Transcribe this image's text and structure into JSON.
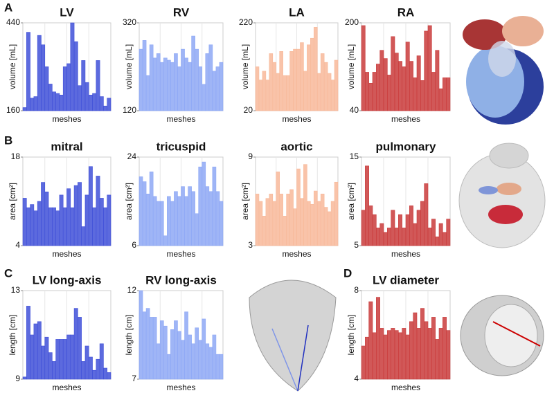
{
  "panel_labels": [
    "A",
    "B",
    "C",
    "D"
  ],
  "chart_data": [
    {
      "type": "bar",
      "title": "LV",
      "x_label": "meshes",
      "y_label": "volume [mL]",
      "color": "#4050d8",
      "ylim": [
        160,
        440
      ],
      "yticks": [
        160,
        440
      ],
      "values": [
        170,
        410,
        200,
        205,
        400,
        370,
        300,
        245,
        220,
        215,
        210,
        300,
        310,
        440,
        380,
        240,
        320,
        250,
        210,
        215,
        320,
        205,
        175,
        200
      ]
    },
    {
      "type": "bar",
      "title": "RV",
      "x_label": "meshes",
      "y_label": "volume [mL]",
      "color": "#8ea8f5",
      "ylim": [
        120,
        320
      ],
      "yticks": [
        120,
        320
      ],
      "values": [
        260,
        280,
        200,
        270,
        240,
        250,
        230,
        240,
        235,
        230,
        250,
        220,
        260,
        240,
        230,
        290,
        260,
        220,
        180,
        250,
        270,
        210,
        220,
        230
      ]
    },
    {
      "type": "bar",
      "title": "LA",
      "x_label": "meshes",
      "y_label": "volume [mL]",
      "color": "#f8b99a",
      "ylim": [
        20,
        220
      ],
      "yticks": [
        20,
        220
      ],
      "values": [
        120,
        90,
        110,
        90,
        150,
        130,
        105,
        155,
        100,
        100,
        155,
        160,
        160,
        175,
        110,
        170,
        185,
        210,
        105,
        150,
        130,
        105,
        90,
        135
      ]
    },
    {
      "type": "bar",
      "title": "RA",
      "x_label": "meshes",
      "y_label": "volume [mL]",
      "color": "#c93b3b",
      "ylim": [
        40,
        200
      ],
      "yticks": [
        40,
        200
      ],
      "values": [
        195,
        110,
        90,
        110,
        125,
        150,
        135,
        105,
        175,
        145,
        130,
        120,
        165,
        130,
        100,
        140,
        95,
        185,
        195,
        110,
        150,
        80,
        100,
        100
      ]
    },
    {
      "type": "bar",
      "title": "mitral",
      "x_label": "meshes",
      "y_label": "area [cm²]",
      "color": "#4050d8",
      "ylim": [
        4,
        18
      ],
      "yticks": [
        4,
        18
      ],
      "values": [
        11.5,
        10,
        10.5,
        9.5,
        11,
        14,
        12.5,
        10,
        10,
        9.5,
        12,
        10,
        13,
        10,
        13.5,
        14,
        7,
        12,
        16.5,
        10,
        15,
        11.5,
        10,
        12
      ]
    },
    {
      "type": "bar",
      "title": "tricuspid",
      "x_label": "meshes",
      "y_label": "area [cm²]",
      "color": "#8ea8f5",
      "ylim": [
        6,
        24
      ],
      "yticks": [
        6,
        24
      ],
      "values": [
        20,
        19,
        16.5,
        21,
        16,
        15,
        15,
        8,
        16,
        15,
        17,
        16,
        18,
        16,
        18,
        17,
        12.5,
        22,
        23,
        18,
        17,
        22,
        17,
        15
      ]
    },
    {
      "type": "bar",
      "title": "aortic",
      "x_label": "meshes",
      "y_label": "area [cm²]",
      "color": "#f8b99a",
      "ylim": [
        3,
        9
      ],
      "yticks": [
        3,
        9
      ],
      "values": [
        6.5,
        6,
        5,
        6.2,
        6.5,
        6,
        8,
        6.5,
        5,
        6.5,
        6.8,
        5.5,
        8.2,
        6.2,
        8.5,
        6,
        5.8,
        6.7,
        6,
        6.5,
        5.6,
        5.3,
        6,
        7.3
      ]
    },
    {
      "type": "bar",
      "title": "pulmonary",
      "x_label": "meshes",
      "y_label": "area [cm²]",
      "color": "#c93b3b",
      "ylim": [
        5,
        15
      ],
      "yticks": [
        5,
        15
      ],
      "values": [
        9,
        14,
        9.5,
        8.5,
        7,
        7.5,
        6.5,
        7,
        9,
        7,
        8.5,
        7,
        8.5,
        9.5,
        7.5,
        9,
        10,
        12,
        7,
        8,
        6,
        7.5,
        6.5,
        8
      ]
    },
    {
      "type": "bar",
      "title": "LV long-axis",
      "x_label": "meshes",
      "y_label": "length [cm]",
      "color": "#4050d8",
      "ylim": [
        9,
        13
      ],
      "yticks": [
        9,
        13
      ],
      "values": [
        9.1,
        12.3,
        11,
        11.5,
        11.6,
        10.5,
        10.9,
        10.2,
        9.8,
        10.8,
        10.8,
        10.8,
        11,
        11,
        12.2,
        11.8,
        9.8,
        10.5,
        10,
        9.4,
        9.9,
        10.6,
        9.5,
        9.3
      ]
    },
    {
      "type": "bar",
      "title": "RV long-axis",
      "x_label": "meshes",
      "y_label": "length [cm]",
      "color": "#8ea8f5",
      "ylim": [
        7,
        12
      ],
      "yticks": [
        7,
        12
      ],
      "values": [
        12,
        10.8,
        11,
        10.5,
        10.5,
        9,
        10.3,
        10,
        8.4,
        9.8,
        10.3,
        9.7,
        9.2,
        10.8,
        9.5,
        9,
        9.9,
        9.2,
        10.4,
        9,
        8.8,
        9.5,
        8.4,
        8.4
      ]
    },
    {
      "type": "bar",
      "title": "LV diameter",
      "x_label": "meshes",
      "y_label": "length [cm]",
      "color": "#c93b3b",
      "ylim": [
        4,
        8
      ],
      "yticks": [
        4,
        8
      ],
      "values": [
        5.5,
        5.9,
        7.5,
        6.1,
        7.7,
        6.3,
        6.0,
        6.2,
        6.3,
        6.2,
        6.1,
        6.3,
        6.0,
        6.6,
        7.0,
        6.3,
        7.2,
        6.6,
        6.3,
        6.8,
        5.8,
        6.3,
        6.8,
        6.2
      ]
    }
  ]
}
